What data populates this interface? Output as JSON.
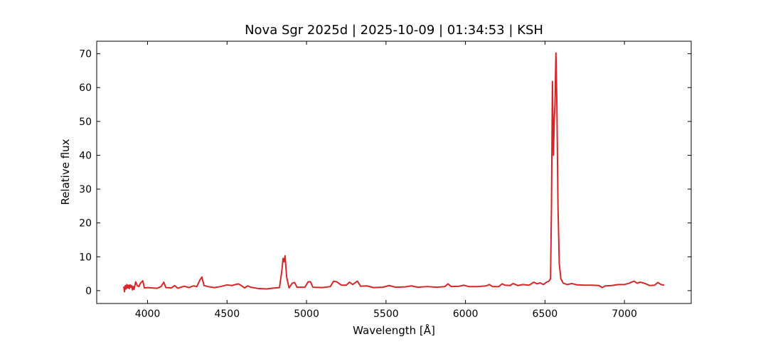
{
  "chart_data": {
    "type": "line",
    "title": "Nova Sgr 2025d | 2025-10-09 | 01:34:53 | KSH",
    "xlabel": "Wavelength [Å]",
    "ylabel": "Relative flux",
    "color": "#d62728",
    "x": [
      3850,
      3855,
      3860,
      3865,
      3870,
      3875,
      3880,
      3885,
      3890,
      3895,
      3900,
      3905,
      3910,
      3915,
      3925,
      3935,
      3945,
      3955,
      3970,
      3980,
      4000,
      4030,
      4060,
      4085,
      4102,
      4115,
      4150,
      4170,
      4190,
      4230,
      4260,
      4290,
      4310,
      4330,
      4342,
      4355,
      4380,
      4420,
      4460,
      4500,
      4530,
      4570,
      4590,
      4610,
      4630,
      4650,
      4700,
      4750,
      4800,
      4830,
      4845,
      4852,
      4858,
      4865,
      4875,
      4890,
      4910,
      4925,
      4940,
      4990,
      5010,
      5025,
      5040,
      5100,
      5150,
      5170,
      5190,
      5220,
      5250,
      5270,
      5290,
      5320,
      5340,
      5380,
      5420,
      5480,
      5520,
      5560,
      5620,
      5660,
      5700,
      5760,
      5820,
      5870,
      5890,
      5910,
      5960,
      5990,
      6020,
      6080,
      6130,
      6150,
      6170,
      6210,
      6230,
      6250,
      6280,
      6300,
      6330,
      6360,
      6400,
      6430,
      6450,
      6470,
      6490,
      6510,
      6525,
      6535,
      6541,
      6547,
      6553,
      6559,
      6563,
      6569,
      6575,
      6582,
      6590,
      6600,
      6615,
      6640,
      6670,
      6700,
      6750,
      6800,
      6840,
      6860,
      6880,
      6920,
      6960,
      7000,
      7030,
      7060,
      7080,
      7100,
      7130,
      7160,
      7190,
      7210,
      7230,
      7250
    ],
    "values": [
      1.2,
      -0.3,
      1.5,
      0.5,
      1.8,
      0.8,
      1.6,
      0.6,
      1.7,
      1.0,
      1.5,
      0.2,
      1.2,
      0.4,
      2.6,
      1.5,
      1.2,
      2.2,
      2.9,
      0.8,
      0.9,
      0.8,
      0.7,
      1.2,
      2.5,
      0.9,
      0.8,
      1.5,
      0.7,
      1.3,
      0.9,
      1.4,
      1.2,
      3.2,
      4.0,
      1.5,
      1.2,
      0.9,
      1.2,
      1.7,
      1.5,
      2.0,
      1.5,
      0.8,
      1.4,
      1.0,
      0.6,
      0.5,
      0.8,
      0.9,
      6.0,
      9.5,
      8.5,
      10.3,
      4.0,
      0.8,
      2.2,
      2.4,
      1.0,
      1.0,
      2.6,
      2.6,
      1.0,
      0.9,
      1.2,
      2.8,
      2.6,
      1.6,
      1.6,
      2.5,
      1.8,
      2.8,
      1.3,
      1.4,
      0.9,
      1.0,
      1.5,
      1.0,
      1.1,
      1.4,
      1.0,
      1.2,
      1.0,
      1.2,
      2.0,
      1.2,
      1.3,
      1.6,
      1.2,
      1.2,
      1.4,
      1.8,
      1.2,
      1.2,
      2.0,
      1.6,
      1.5,
      2.1,
      1.5,
      1.8,
      1.6,
      2.5,
      2.0,
      2.3,
      1.8,
      2.5,
      2.8,
      3.5,
      25,
      61.8,
      40,
      51,
      55,
      70.2,
      55,
      25,
      8,
      3.5,
      2.2,
      1.8,
      2.1,
      1.7,
      1.6,
      1.6,
      1.5,
      0.9,
      1.4,
      1.5,
      1.8,
      1.8,
      2.2,
      2.8,
      2.2,
      2.5,
      2.1,
      1.5,
      1.6,
      2.4,
      1.8,
      1.6
    ],
    "xlim": [
      3680,
      7420
    ],
    "xticks": [
      4000,
      4500,
      5000,
      5500,
      6000,
      6500,
      7000
    ],
    "ylim": [
      -3.8,
      73.7
    ],
    "yticks": [
      0,
      10,
      20,
      30,
      40,
      50,
      60,
      70
    ]
  }
}
